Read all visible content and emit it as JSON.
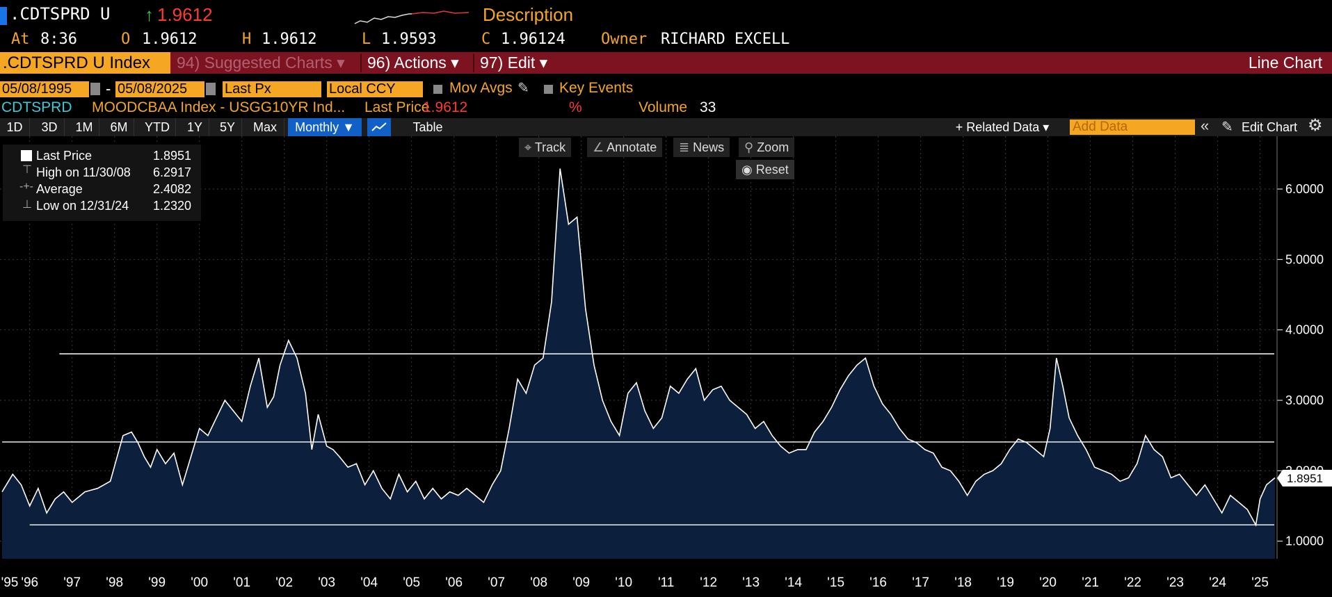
{
  "header": {
    "ticker": ".CDTSPRD  U",
    "last_arrow": "↑",
    "last": "1.9612",
    "description_label": "Description",
    "at_label": "At",
    "time": "8:36",
    "open_label": "O",
    "open": "1.9612",
    "high_label": "H",
    "high": "1.9612",
    "low_label": "L",
    "low": "1.9593",
    "close_label": "C",
    "close": "1.96124",
    "owner_label": "Owner",
    "owner": "RICHARD EXCELL"
  },
  "command_bar": {
    "index_tab": ".CDTSPRD U Index",
    "suggested": "94) Suggested Charts ▾",
    "actions": "96) Actions ▾",
    "edit": "97) Edit ▾",
    "chart_type": "Line Chart"
  },
  "settings": {
    "start_date": "05/08/1995",
    "dash": "-",
    "end_date": "05/08/2025",
    "field": "Last Px",
    "currency": "Local CCY",
    "mov_avgs": "Mov Avgs",
    "key_events": "Key Events"
  },
  "info_row": {
    "name": "CDTSPRD",
    "formula": "MOODCBAA Index - USGG10YR Ind...",
    "last_price_label": "Last Price",
    "last_price": "1.9612",
    "pct": "%",
    "volume_label": "Volume",
    "volume": "33"
  },
  "toolbar": {
    "periods": [
      "1D",
      "3D",
      "1M",
      "6M",
      "YTD",
      "1Y",
      "5Y",
      "Max"
    ],
    "frequency": "Monthly ▼",
    "table": "Table",
    "related": "+ Related Data ▾",
    "add_data_placeholder": "Add Data",
    "edit_chart": "Edit Chart"
  },
  "chart_tools": {
    "track": "Track",
    "annotate": "Annotate",
    "news": "News",
    "zoom": "Zoom",
    "reset": "Reset"
  },
  "legend": {
    "last_label": "Last Price",
    "last_value": "1.8951",
    "high_label": "High on 11/30/08",
    "high_value": "6.2917",
    "avg_label": "Average",
    "avg_value": "2.4082",
    "low_label": "Low on 12/31/24",
    "low_value": "1.2320"
  },
  "colors": {
    "orange": "#f5a623",
    "red_bar": "#7d1220",
    "area_fill": "#0c1f3d",
    "line": "#ffffff",
    "active_blue": "#1060c8"
  },
  "chart_data": {
    "type": "area",
    "ylim": [
      0.75,
      6.75
    ],
    "yticks": [
      "1.0000",
      "2.0000",
      "3.0000",
      "4.0000",
      "5.0000",
      "6.0000"
    ],
    "ytick_values": [
      1,
      2,
      3,
      4,
      5,
      6
    ],
    "x_range": [
      1995.3,
      2025.4
    ],
    "xticks": [
      "'95",
      "'96",
      "'97",
      "'98",
      "'99",
      "'00",
      "'01",
      "'02",
      "'03",
      "'04",
      "'05",
      "'06",
      "'07",
      "'08",
      "'09",
      "'10",
      "'11",
      "'12",
      "'13",
      "'14",
      "'15",
      "'16",
      "'17",
      "'18",
      "'19",
      "'20",
      "'21",
      "'22",
      "'23",
      "'24",
      "'25"
    ],
    "xtick_values": [
      1995.0,
      1996.0,
      1997.0,
      1998.0,
      1999.0,
      2000.0,
      2001.0,
      2002.0,
      2003.0,
      2004.0,
      2005.0,
      2006.0,
      2007.0,
      2008.0,
      2009.0,
      2010.0,
      2011.0,
      2012.0,
      2013.0,
      2014.0,
      2015.0,
      2016.0,
      2017.0,
      2018.0,
      2019.0,
      2020.0,
      2021.0,
      2022.0,
      2023.0,
      2024.0,
      2025.0
    ],
    "series": [
      {
        "x": [
          1995.35,
          1995.6,
          1995.8,
          1996.0,
          1996.2,
          1996.4,
          1996.6,
          1996.8,
          1997.0,
          1997.3,
          1997.6,
          1997.9,
          1998.2,
          1998.4,
          1998.55,
          1998.7,
          1998.85,
          1999.0,
          1999.2,
          1999.4,
          1999.6,
          1999.8,
          2000.0,
          2000.2,
          2000.4,
          2000.6,
          2000.8,
          2001.0,
          2001.2,
          2001.4,
          2001.6,
          2001.75,
          2001.9,
          2002.1,
          2002.3,
          2002.5,
          2002.65,
          2002.8,
          2003.0,
          2003.15,
          2003.3,
          2003.5,
          2003.7,
          2003.9,
          2004.1,
          2004.3,
          2004.5,
          2004.7,
          2004.9,
          2005.1,
          2005.3,
          2005.5,
          2005.7,
          2005.9,
          2006.1,
          2006.3,
          2006.5,
          2006.7,
          2006.9,
          2007.1,
          2007.3,
          2007.5,
          2007.7,
          2007.9,
          2008.1,
          2008.3,
          2008.5,
          2008.7,
          2008.9,
          2009.1,
          2009.3,
          2009.5,
          2009.7,
          2009.9,
          2010.1,
          2010.3,
          2010.5,
          2010.7,
          2010.9,
          2011.1,
          2011.3,
          2011.5,
          2011.7,
          2011.9,
          2012.1,
          2012.3,
          2012.5,
          2012.7,
          2012.9,
          2013.1,
          2013.3,
          2013.5,
          2013.7,
          2013.9,
          2014.1,
          2014.3,
          2014.5,
          2014.7,
          2014.9,
          2015.1,
          2015.3,
          2015.5,
          2015.7,
          2015.9,
          2016.1,
          2016.3,
          2016.5,
          2016.7,
          2016.9,
          2017.1,
          2017.3,
          2017.5,
          2017.7,
          2017.9,
          2018.1,
          2018.3,
          2018.5,
          2018.7,
          2018.9,
          2019.1,
          2019.3,
          2019.5,
          2019.7,
          2019.9,
          2020.05,
          2020.2,
          2020.35,
          2020.5,
          2020.7,
          2020.9,
          2021.1,
          2021.3,
          2021.5,
          2021.7,
          2021.9,
          2022.1,
          2022.3,
          2022.5,
          2022.7,
          2022.9,
          2023.1,
          2023.3,
          2023.5,
          2023.7,
          2023.9,
          2024.1,
          2024.3,
          2024.5,
          2024.7,
          2024.9,
          2025.0,
          2025.15,
          2025.35
        ],
        "y": [
          1.7,
          1.95,
          1.8,
          1.5,
          1.75,
          1.4,
          1.6,
          1.7,
          1.55,
          1.7,
          1.75,
          1.85,
          2.5,
          2.55,
          2.4,
          2.2,
          2.05,
          2.3,
          2.1,
          2.25,
          1.8,
          2.2,
          2.6,
          2.5,
          2.75,
          3.0,
          2.85,
          2.7,
          3.2,
          3.6,
          2.9,
          3.05,
          3.5,
          3.85,
          3.6,
          3.1,
          2.3,
          2.8,
          2.35,
          2.3,
          2.2,
          2.05,
          2.1,
          1.8,
          2.0,
          1.75,
          1.6,
          1.95,
          1.7,
          1.85,
          1.6,
          1.75,
          1.6,
          1.7,
          1.65,
          1.75,
          1.65,
          1.55,
          1.8,
          2.0,
          2.6,
          3.3,
          3.1,
          3.5,
          3.6,
          4.4,
          6.29,
          5.5,
          5.6,
          4.3,
          3.5,
          3.0,
          2.7,
          2.5,
          3.1,
          3.25,
          2.85,
          2.6,
          2.75,
          3.2,
          3.1,
          3.3,
          3.45,
          3.0,
          3.15,
          3.2,
          3.0,
          2.9,
          2.8,
          2.6,
          2.7,
          2.5,
          2.35,
          2.25,
          2.3,
          2.3,
          2.55,
          2.7,
          2.9,
          3.15,
          3.35,
          3.5,
          3.6,
          3.2,
          2.95,
          2.8,
          2.6,
          2.45,
          2.4,
          2.3,
          2.25,
          2.05,
          2.0,
          1.85,
          1.65,
          1.85,
          1.95,
          2.0,
          2.1,
          2.3,
          2.45,
          2.4,
          2.3,
          2.2,
          2.6,
          3.6,
          3.2,
          2.75,
          2.5,
          2.3,
          2.05,
          2.0,
          1.95,
          1.85,
          1.9,
          2.1,
          2.5,
          2.3,
          2.2,
          1.9,
          1.95,
          1.8,
          1.65,
          1.8,
          1.6,
          1.4,
          1.65,
          1.55,
          1.45,
          1.23,
          1.6,
          1.8,
          1.9
        ]
      }
    ],
    "reference_lines": [
      3.66,
      2.4082,
      1.232
    ],
    "last_marker": "1.8951"
  }
}
